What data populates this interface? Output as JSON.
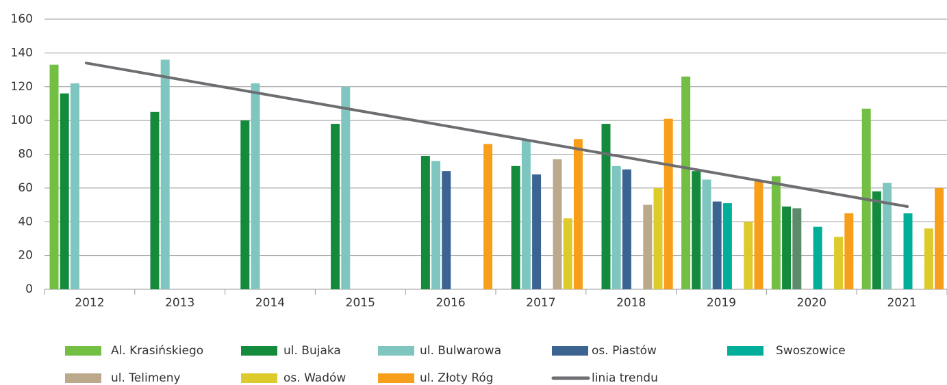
{
  "chart_data": {
    "type": "bar",
    "categories": [
      "2012",
      "2013",
      "2014",
      "2015",
      "2016",
      "2017",
      "2018",
      "2019",
      "2020",
      "2021"
    ],
    "series": [
      {
        "name": "Al. Krasińskiego",
        "color": "#72bf44",
        "values": [
          133,
          null,
          null,
          null,
          null,
          null,
          null,
          126,
          67,
          107
        ]
      },
      {
        "name": "ul. Bujaka",
        "color": "#138a3c",
        "values": [
          116,
          105,
          100,
          98,
          79,
          73,
          98,
          70,
          49,
          58
        ]
      },
      {
        "name": "ul. Bulwarowa",
        "color": "#7fc6c0",
        "values": [
          122,
          136,
          122,
          120,
          76,
          88,
          73,
          65,
          48,
          63
        ],
        "colors": [
          null,
          null,
          null,
          null,
          null,
          null,
          null,
          null,
          "#5e8a6c",
          null
        ]
      },
      {
        "name": "os. Piastów",
        "color": "#3b6491",
        "values": [
          null,
          null,
          null,
          null,
          70,
          68,
          71,
          52,
          null,
          null
        ]
      },
      {
        "name": "Swoszowice",
        "color": "#00ae9a",
        "values": [
          null,
          null,
          null,
          null,
          null,
          null,
          null,
          51,
          37,
          45
        ]
      },
      {
        "name": "ul. Telimeny",
        "color": "#bca98c",
        "values": [
          null,
          null,
          null,
          null,
          null,
          77,
          50,
          null,
          null,
          null
        ]
      },
      {
        "name": "os. Wadów",
        "color": "#dccb2a",
        "values": [
          null,
          null,
          null,
          null,
          null,
          42,
          60,
          40,
          31,
          36
        ]
      },
      {
        "name": "ul. Złoty Róg",
        "color": "#f79e1b",
        "values": [
          null,
          null,
          null,
          null,
          86,
          89,
          101,
          64,
          45,
          60
        ]
      }
    ],
    "trend": {
      "name": "linia trendu",
      "color": "#6d6e71",
      "values": [
        134,
        49
      ]
    },
    "ylim": [
      0,
      160
    ],
    "yticks": [
      0,
      20,
      40,
      60,
      80,
      100,
      120,
      140,
      160
    ],
    "grid": true
  }
}
